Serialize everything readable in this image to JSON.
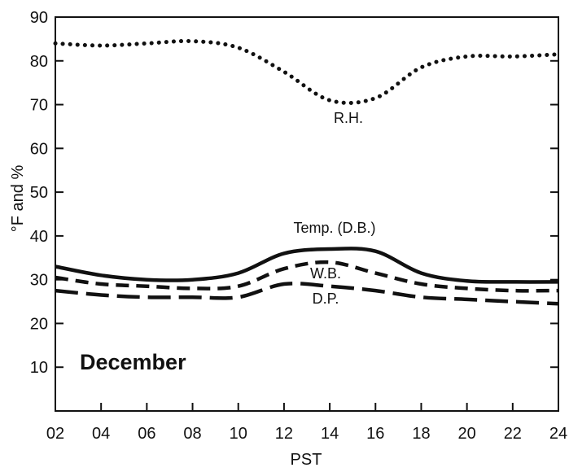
{
  "chart_data": {
    "type": "line",
    "title": "December",
    "xlabel": "PST",
    "ylabel": "°F and %",
    "x": [
      2,
      4,
      6,
      8,
      10,
      12,
      14,
      16,
      18,
      20,
      22,
      24
    ],
    "x_tick_labels": [
      "02",
      "04",
      "06",
      "08",
      "10",
      "12",
      "14",
      "16",
      "18",
      "20",
      "22",
      "24"
    ],
    "xlim": [
      2,
      24
    ],
    "ylim": [
      0,
      90
    ],
    "y_ticks": [
      10,
      20,
      30,
      40,
      50,
      60,
      70,
      80,
      90
    ],
    "y_tick_labels": [
      "10",
      "20",
      "30",
      "40",
      "50",
      "60",
      "70",
      "80",
      "90"
    ],
    "grid": false,
    "series": [
      {
        "name": "R.H.",
        "style": "dotted",
        "values": [
          84,
          83.5,
          84,
          84.5,
          83,
          77.5,
          71,
          71.5,
          78.5,
          81,
          81,
          81.5
        ]
      },
      {
        "name": "Temp. (D.B.)",
        "style": "solid",
        "values": [
          33,
          31,
          30,
          30,
          31.5,
          36,
          37,
          36.5,
          31.5,
          29.7,
          29.5,
          29.5
        ]
      },
      {
        "name": "W.B.",
        "style": "dashed",
        "values": [
          30.5,
          29,
          28.5,
          28,
          28.5,
          32.5,
          34,
          31.5,
          29,
          28,
          27.5,
          27.5
        ]
      },
      {
        "name": "D.P.",
        "style": "long-dashed",
        "values": [
          27.5,
          26.5,
          26,
          26,
          26,
          29,
          28.5,
          27.5,
          26,
          25.5,
          25,
          24.5
        ]
      }
    ],
    "colors": {
      "line": "#111111",
      "background": "#ffffff"
    }
  }
}
